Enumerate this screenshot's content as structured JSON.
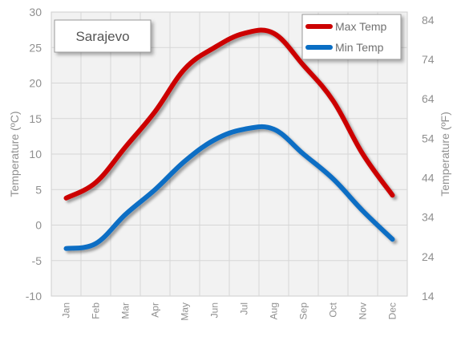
{
  "chart_data": {
    "type": "line",
    "title": "Sarajevo",
    "categories": [
      "Jan",
      "Feb",
      "Mar",
      "Apr",
      "May",
      "Jun",
      "Jul",
      "Aug",
      "Sep",
      "Oct",
      "Nov",
      "Dec"
    ],
    "series": [
      {
        "name": "Max Temp",
        "color": "#cc0000",
        "values": [
          3.8,
          6.0,
          11.0,
          16.0,
          22.0,
          25.0,
          27.0,
          27.0,
          22.5,
          17.5,
          10.0,
          4.2
        ]
      },
      {
        "name": "Min Temp",
        "color": "#0a6ec4",
        "values": [
          -3.3,
          -2.6,
          1.5,
          5.0,
          9.0,
          12.0,
          13.5,
          13.5,
          10.0,
          6.5,
          2.0,
          -2.0
        ]
      }
    ],
    "ylabel": "Temperature (ºC)",
    "y2label": "Temperature (ºF)",
    "ylim": [
      -10,
      30
    ],
    "yticks": [
      -10,
      -5,
      0,
      5,
      10,
      15,
      20,
      25,
      30
    ],
    "y2lim": [
      14,
      86
    ],
    "y2ticks": [
      14,
      24,
      34,
      44,
      54,
      64,
      74,
      84
    ],
    "grid": true,
    "legend": "top-right"
  }
}
